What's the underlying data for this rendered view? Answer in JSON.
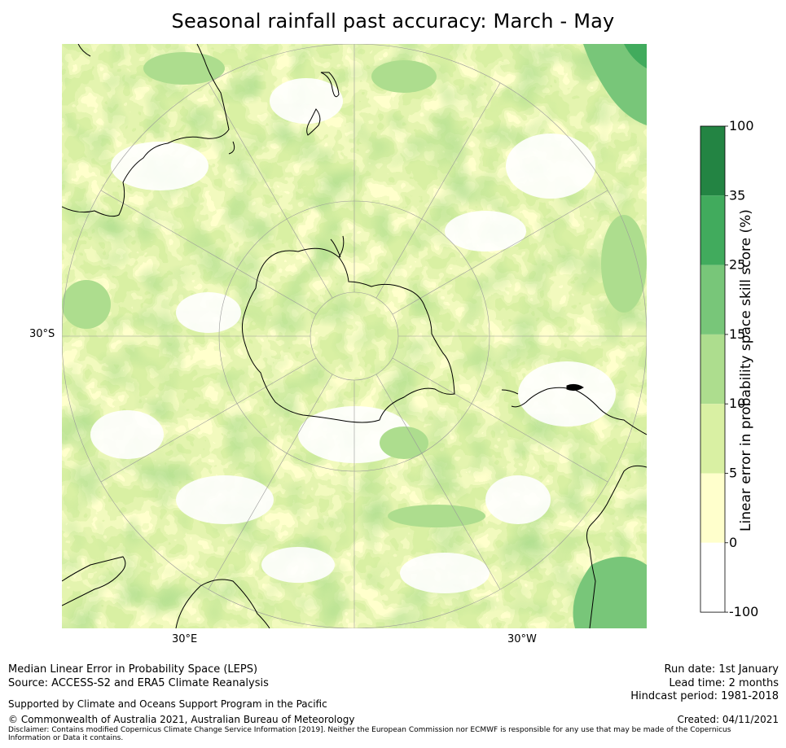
{
  "title": "Seasonal rainfall past accuracy: March - May",
  "map": {
    "projection": "south-polar-orthographic",
    "lat_label": "30°S",
    "lon_labels": {
      "east": "30°E",
      "west": "30°W"
    },
    "colors": {
      "ocean_none": "#ffffff",
      "coast": "#000000",
      "grid": "#9a9a9a"
    }
  },
  "colorbar": {
    "label": "Linear error in probability space skill score (%)",
    "ticks": [
      "100",
      "35",
      "25",
      "15",
      "10",
      "5",
      "0",
      "-100"
    ],
    "bins": [
      {
        "range": "35 to 100",
        "color": "#238443"
      },
      {
        "range": "25 to 35",
        "color": "#41ab5d"
      },
      {
        "range": "15 to 25",
        "color": "#78c679"
      },
      {
        "range": "10 to 15",
        "color": "#addd8e"
      },
      {
        "range": "5 to 10",
        "color": "#d9f0a3"
      },
      {
        "range": "0 to 5",
        "color": "#ffffcc"
      },
      {
        "range": "-100 to 0",
        "color": "#ffffff"
      }
    ]
  },
  "footer": {
    "method": "Median Linear Error in Probability Space (LEPS)",
    "source": "Source: ACCESS-S2 and ERA5 Climate Reanalysis",
    "support": "Supported by Climate and Oceans Support Program in the Pacific",
    "copyright": "© Commonwealth of Australia 2021, Australian Bureau of Meteorology",
    "disclaimer": "Disclaimer: Contains modified Copernicus Climate Change Service Information [2019]. Neither the European Commission nor ECMWF is responsible for any use that may be made of the Copernicus Information or Data it contains.",
    "run_date": "Run date: 1st January",
    "lead_time": "Lead time: 2 months",
    "hindcast": "Hindcast period: 1981-2018",
    "created": "Created: 04/11/2021"
  }
}
